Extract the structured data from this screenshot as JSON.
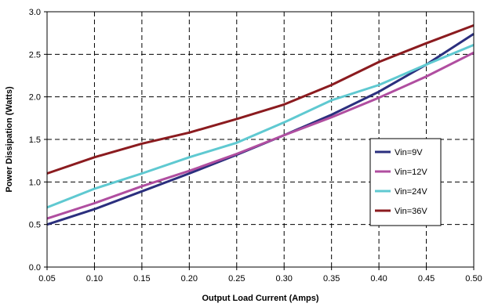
{
  "chart_data": {
    "type": "line",
    "title": "",
    "xlabel": "Output Load Current (Amps)",
    "ylabel": "Power Dissipation (Watts)",
    "xlim": [
      0.05,
      0.5
    ],
    "ylim": [
      0.0,
      3.0
    ],
    "x_ticks": [
      "0.05",
      "0.10",
      "0.15",
      "0.20",
      "0.25",
      "0.30",
      "0.35",
      "0.40",
      "0.45",
      "0.50"
    ],
    "y_ticks": [
      "0.0",
      "0.5",
      "1.0",
      "1.5",
      "2.0",
      "2.5",
      "3.0"
    ],
    "grid": "dashed, both axes",
    "legend_position": "right-center inside plot",
    "x": [
      0.05,
      0.1,
      0.15,
      0.2,
      0.25,
      0.3,
      0.35,
      0.4,
      0.45,
      0.5
    ],
    "series": [
      {
        "name": "Vin=9V",
        "color": "#2b2f7e",
        "values": [
          0.5,
          0.68,
          0.89,
          1.1,
          1.32,
          1.55,
          1.79,
          2.06,
          2.38,
          2.74
        ]
      },
      {
        "name": "Vin=12V",
        "color": "#b04ea0",
        "values": [
          0.57,
          0.75,
          0.95,
          1.13,
          1.33,
          1.55,
          1.76,
          1.99,
          2.24,
          2.52
        ]
      },
      {
        "name": "Vin=24V",
        "color": "#5fc9d1",
        "values": [
          0.7,
          0.92,
          1.1,
          1.29,
          1.46,
          1.7,
          1.96,
          2.14,
          2.38,
          2.61
        ]
      },
      {
        "name": "Vin=36V",
        "color": "#8b1b1f",
        "values": [
          1.1,
          1.29,
          1.45,
          1.58,
          1.74,
          1.91,
          2.14,
          2.41,
          2.63,
          2.84
        ]
      }
    ]
  }
}
